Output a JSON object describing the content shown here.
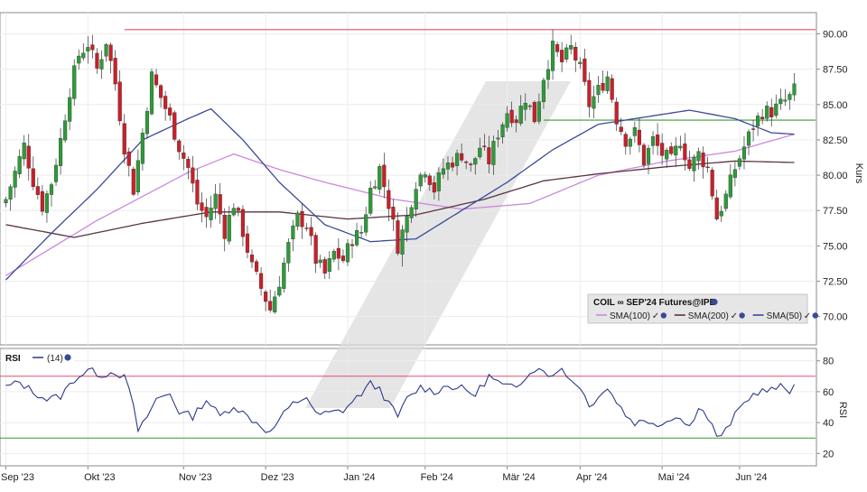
{
  "chart_data": [
    {
      "type": "candlestick",
      "instrument": "COIL",
      "contract": "SEP'24 Futures@IPE",
      "ylabel": "Kurs",
      "ylim": [
        68.0,
        91.5
      ],
      "yticks": [
        70.0,
        72.5,
        75.0,
        77.5,
        80.0,
        82.5,
        85.0,
        87.5,
        90.0
      ],
      "ytick_labels": [
        "70.00",
        "72.50",
        "75.00",
        "77.50",
        "80.00",
        "82.50",
        "85.00",
        "87.50",
        "90.00"
      ],
      "x_months": [
        "Sep '23",
        "Okt '23",
        "Nov '23",
        "Dez '23",
        "Jan '24",
        "Feb '24",
        "Mär '24",
        "Apr '24",
        "Mai '24",
        "Jun '24"
      ],
      "horizontal_lines": [
        {
          "value": 90.3,
          "color": "#e05070"
        },
        {
          "value": 83.9,
          "color": "#3a9a3a"
        }
      ],
      "closes_anchor": [
        [
          0,
          78.3
        ],
        [
          2,
          80.2
        ],
        [
          4,
          82.1
        ],
        [
          6,
          79.6
        ],
        [
          8,
          77.8
        ],
        [
          10,
          79.5
        ],
        [
          12,
          82.5
        ],
        [
          14,
          86.0
        ],
        [
          16,
          88.5
        ],
        [
          18,
          89.3
        ],
        [
          20,
          87.5
        ],
        [
          22,
          89.5
        ],
        [
          24,
          86.5
        ],
        [
          26,
          82.0
        ],
        [
          28,
          79.0
        ],
        [
          30,
          83.0
        ],
        [
          32,
          87.0
        ],
        [
          34,
          85.5
        ],
        [
          36,
          84.0
        ],
        [
          38,
          82.0
        ],
        [
          40,
          80.5
        ],
        [
          42,
          78.0
        ],
        [
          44,
          77.0
        ],
        [
          46,
          78.5
        ],
        [
          48,
          76.0
        ],
        [
          50,
          78.0
        ],
        [
          52,
          76.0
        ],
        [
          54,
          73.5
        ],
        [
          56,
          72.0
        ],
        [
          58,
          70.5
        ],
        [
          60,
          72.5
        ],
        [
          62,
          75.0
        ],
        [
          64,
          77.0
        ],
        [
          66,
          76.5
        ],
        [
          68,
          74.0
        ],
        [
          70,
          73.0
        ],
        [
          72,
          74.5
        ],
        [
          74,
          74.0
        ],
        [
          76,
          75.5
        ],
        [
          78,
          76.0
        ],
        [
          80,
          79.0
        ],
        [
          82,
          80.5
        ],
        [
          84,
          78.0
        ],
        [
          86,
          75.0
        ],
        [
          88,
          77.0
        ],
        [
          90,
          79.5
        ],
        [
          92,
          80.5
        ],
        [
          94,
          79.0
        ],
        [
          96,
          80.5
        ],
        [
          98,
          81.0
        ],
        [
          100,
          81.5
        ],
        [
          102,
          80.5
        ],
        [
          104,
          82.0
        ],
        [
          106,
          81.0
        ],
        [
          108,
          83.0
        ],
        [
          110,
          84.5
        ],
        [
          112,
          84.0
        ],
        [
          114,
          85.5
        ],
        [
          116,
          84.0
        ],
        [
          118,
          87.0
        ],
        [
          120,
          89.0
        ],
        [
          122,
          88.0
        ],
        [
          124,
          89.0
        ],
        [
          126,
          87.5
        ],
        [
          128,
          85.0
        ],
        [
          130,
          86.0
        ],
        [
          132,
          87.0
        ],
        [
          134,
          84.0
        ],
        [
          136,
          82.5
        ],
        [
          138,
          83.0
        ],
        [
          140,
          81.0
        ],
        [
          142,
          82.5
        ],
        [
          144,
          81.5
        ],
        [
          146,
          81.0
        ],
        [
          148,
          82.5
        ],
        [
          150,
          80.5
        ],
        [
          152,
          81.5
        ],
        [
          154,
          80.5
        ],
        [
          156,
          77.0
        ],
        [
          158,
          78.5
        ],
        [
          160,
          80.5
        ],
        [
          162,
          82.0
        ],
        [
          164,
          83.5
        ],
        [
          166,
          84.5
        ],
        [
          168,
          84.5
        ],
        [
          170,
          85.0
        ],
        [
          172,
          85.5
        ],
        [
          173,
          86.0
        ]
      ],
      "overlays": [
        {
          "name": "SMA(100)",
          "color": "#cc88dd",
          "values": [
            [
              0,
              72.9
            ],
            [
              20,
              76.8
            ],
            [
              40,
              80.2
            ],
            [
              50,
              81.5
            ],
            [
              60,
              80.4
            ],
            [
              70,
              79.5
            ],
            [
              85,
              78.3
            ],
            [
              100,
              77.6
            ],
            [
              115,
              78.0
            ],
            [
              130,
              80.0
            ],
            [
              145,
              81.0
            ],
            [
              160,
              81.7
            ],
            [
              173,
              82.9
            ]
          ]
        },
        {
          "name": "SMA(200)",
          "color": "#5a3444",
          "values": [
            [
              0,
              76.5
            ],
            [
              15,
              75.6
            ],
            [
              30,
              76.6
            ],
            [
              45,
              77.4
            ],
            [
              60,
              77.4
            ],
            [
              75,
              76.9
            ],
            [
              90,
              77.2
            ],
            [
              105,
              78.3
            ],
            [
              118,
              79.6
            ],
            [
              130,
              80.1
            ],
            [
              145,
              80.6
            ],
            [
              160,
              81.0
            ],
            [
              173,
              80.9
            ]
          ]
        },
        {
          "name": "SMA(50)",
          "color": "#3a4a9a",
          "values": [
            [
              0,
              72.6
            ],
            [
              10,
              75.9
            ],
            [
              20,
              79.0
            ],
            [
              30,
              82.5
            ],
            [
              40,
              84.0
            ],
            [
              45,
              84.7
            ],
            [
              52,
              82.5
            ],
            [
              60,
              79.5
            ],
            [
              70,
              76.5
            ],
            [
              80,
              75.3
            ],
            [
              90,
              75.5
            ],
            [
              100,
              77.5
            ],
            [
              110,
              79.5
            ],
            [
              120,
              81.8
            ],
            [
              130,
              83.6
            ],
            [
              140,
              84.1
            ],
            [
              150,
              84.6
            ],
            [
              160,
              84.0
            ],
            [
              168,
              83.0
            ],
            [
              173,
              82.9
            ]
          ]
        }
      ],
      "watermark": "/"
    },
    {
      "type": "line",
      "title": "RSI",
      "parameter": "(14)",
      "ylabel": "RSI",
      "ylim": [
        12,
        88
      ],
      "yticks": [
        20,
        40,
        60,
        80
      ],
      "ytick_labels": [
        "20",
        "40",
        "60",
        "80"
      ],
      "reference_lines": [
        {
          "value": 70,
          "color": "#e05070"
        },
        {
          "value": 30,
          "color": "#3a9a3a"
        }
      ],
      "series": [
        {
          "color": "#2a3a8a",
          "values": [
            [
              0,
              63
            ],
            [
              3,
              66
            ],
            [
              6,
              60
            ],
            [
              9,
              55
            ],
            [
              12,
              57
            ],
            [
              15,
              68
            ],
            [
              18,
              74
            ],
            [
              21,
              71
            ],
            [
              24,
              73
            ],
            [
              26,
              69
            ],
            [
              28,
              52
            ],
            [
              29,
              33
            ],
            [
              31,
              44
            ],
            [
              33,
              55
            ],
            [
              36,
              59
            ],
            [
              38,
              47
            ],
            [
              41,
              44
            ],
            [
              44,
              55
            ],
            [
              47,
              44
            ],
            [
              50,
              51
            ],
            [
              53,
              44
            ],
            [
              56,
              38
            ],
            [
              58,
              33
            ],
            [
              60,
              42
            ],
            [
              63,
              52
            ],
            [
              66,
              57
            ],
            [
              68,
              45
            ],
            [
              71,
              46
            ],
            [
              74,
              48
            ],
            [
              77,
              56
            ],
            [
              80,
              65
            ],
            [
              82,
              62
            ],
            [
              84,
              52
            ],
            [
              86,
              44
            ],
            [
              88,
              55
            ],
            [
              91,
              63
            ],
            [
              94,
              60
            ],
            [
              97,
              64
            ],
            [
              100,
              62
            ],
            [
              103,
              58
            ],
            [
              106,
              70
            ],
            [
              109,
              64
            ],
            [
              112,
              62
            ],
            [
              115,
              74
            ],
            [
              118,
              75
            ],
            [
              120,
              69
            ],
            [
              122,
              76
            ],
            [
              124,
              67
            ],
            [
              126,
              64
            ],
            [
              128,
              50
            ],
            [
              130,
              58
            ],
            [
              132,
              62
            ],
            [
              134,
              54
            ],
            [
              136,
              45
            ],
            [
              138,
              40
            ],
            [
              141,
              41
            ],
            [
              144,
              39
            ],
            [
              147,
              45
            ],
            [
              150,
              37
            ],
            [
              152,
              51
            ],
            [
              154,
              43
            ],
            [
              156,
              32
            ],
            [
              157,
              30
            ],
            [
              159,
              40
            ],
            [
              161,
              49
            ],
            [
              163,
              56
            ],
            [
              165,
              60
            ],
            [
              168,
              61
            ],
            [
              170,
              63
            ],
            [
              172,
              60
            ],
            [
              173,
              67
            ]
          ]
        }
      ]
    }
  ],
  "legend": {
    "title": "COIL ∞ SEP'24 Futures@IPE",
    "items": [
      "SMA(100)",
      "SMA(200)",
      "SMA(50)"
    ]
  },
  "rsi_header": {
    "title": "RSI",
    "param": "(14)"
  }
}
